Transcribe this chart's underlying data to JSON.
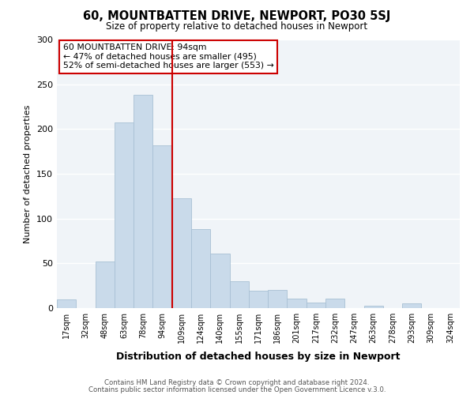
{
  "title": "60, MOUNTBATTEN DRIVE, NEWPORT, PO30 5SJ",
  "subtitle": "Size of property relative to detached houses in Newport",
  "xlabel": "Distribution of detached houses by size in Newport",
  "ylabel": "Number of detached properties",
  "bar_labels": [
    "17sqm",
    "32sqm",
    "48sqm",
    "63sqm",
    "78sqm",
    "94sqm",
    "109sqm",
    "124sqm",
    "140sqm",
    "155sqm",
    "171sqm",
    "186sqm",
    "201sqm",
    "217sqm",
    "232sqm",
    "247sqm",
    "263sqm",
    "278sqm",
    "293sqm",
    "309sqm",
    "324sqm"
  ],
  "bar_values": [
    10,
    0,
    52,
    207,
    238,
    182,
    123,
    88,
    61,
    30,
    19,
    20,
    11,
    6,
    11,
    0,
    3,
    0,
    5,
    0,
    0
  ],
  "bar_color": "#c9daea",
  "bar_edge_color": "#a8c0d4",
  "vline_x_index": 5,
  "vline_color": "#cc0000",
  "annotation_title": "60 MOUNTBATTEN DRIVE: 94sqm",
  "annotation_line1": "← 47% of detached houses are smaller (495)",
  "annotation_line2": "52% of semi-detached houses are larger (553) →",
  "annotation_box_edge": "#cc0000",
  "ylim": [
    0,
    300
  ],
  "yticks": [
    0,
    50,
    100,
    150,
    200,
    250,
    300
  ],
  "footer1": "Contains HM Land Registry data © Crown copyright and database right 2024.",
  "footer2": "Contains public sector information licensed under the Open Government Licence v.3.0.",
  "bg_color": "#f0f4f8"
}
